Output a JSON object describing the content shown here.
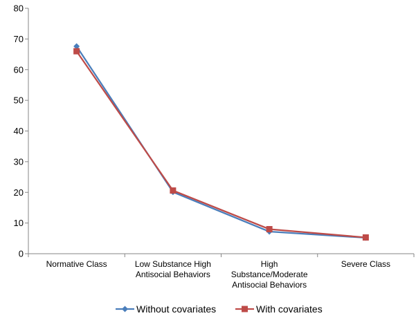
{
  "chart_data": {
    "type": "line",
    "title": "",
    "xlabel": "",
    "ylabel": "",
    "ylim": [
      0,
      80
    ],
    "yticks": [
      0,
      10,
      20,
      30,
      40,
      50,
      60,
      70,
      80
    ],
    "grid": false,
    "legend_position": "bottom",
    "categories": [
      [
        "Normative Class"
      ],
      [
        "Low Substance High",
        "Antisocial Behaviors"
      ],
      [
        "High",
        "Substance/Moderate",
        "Antisocial Behaviors"
      ],
      [
        "Severe Class"
      ]
    ],
    "series": [
      {
        "name": "Without covariates",
        "values": [
          67.6,
          20.1,
          7.2,
          5.2
        ],
        "color": "#4a7ebb",
        "marker": "diamond"
      },
      {
        "name": "With covariates",
        "values": [
          66.0,
          20.6,
          8.0,
          5.3
        ],
        "color": "#be4b48",
        "marker": "square"
      }
    ]
  }
}
